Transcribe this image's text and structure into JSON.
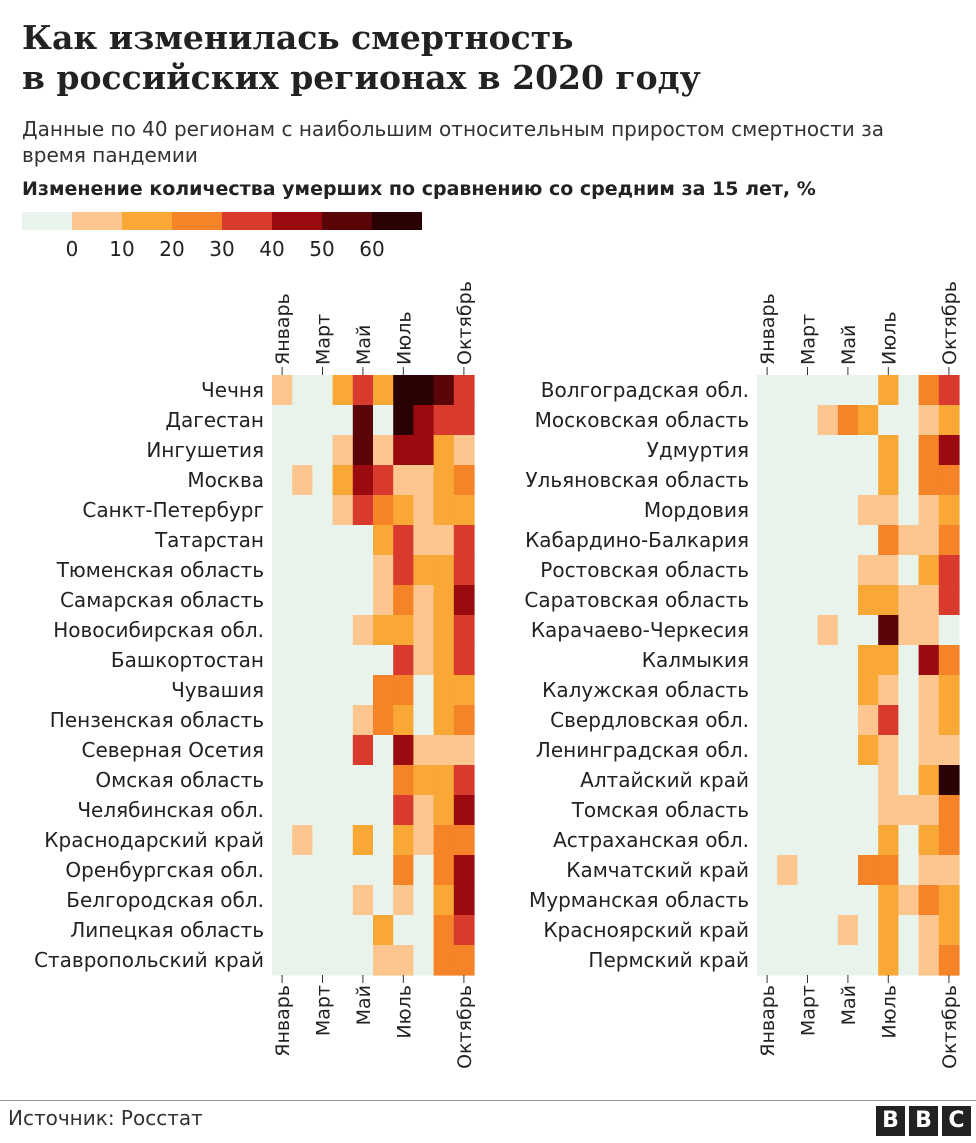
{
  "title_line1": "Как изменилась смертность",
  "title_line2": "в российских регионах в 2020 году",
  "subtitle": "Данные по 40 регионам с наибольшим относительным приростом смертности за время пандемии",
  "legend": {
    "title": "Изменение количества умерших по сравнению со средним за 15 лет, %",
    "colors": [
      "#e8f3ec",
      "#fcc68e",
      "#f9a735",
      "#f58327",
      "#d93a2e",
      "#9a0a0f",
      "#5a0508",
      "#2a0203"
    ],
    "labels": [
      "0",
      "10",
      "20",
      "30",
      "40",
      "50",
      "60"
    ]
  },
  "source": "Источник: Росстат",
  "brand": [
    "B",
    "B",
    "C"
  ],
  "chart_data": {
    "type": "heatmap",
    "title": "Изменение количества умерших по сравнению со средним за 15 лет, %",
    "x_labels": [
      "Январь",
      "Март",
      "Май",
      "Июль",
      "Октябрь"
    ],
    "x_label_month_index": [
      0,
      2,
      4,
      6,
      9
    ],
    "months_count": 10,
    "level_meaning": "0 = below 0%, 1 = 0–10%, 2 = 10–20%, 3 = 20–30%, 4 = 30–40%, 5 = 40–50%, 6 = 50–60%, 7 = above 60%",
    "panels": [
      {
        "rows": [
          {
            "region": "Чечня",
            "levels": [
              1,
              0,
              0,
              2,
              4,
              2,
              7,
              7,
              6,
              4
            ]
          },
          {
            "region": "Дагестан",
            "levels": [
              0,
              0,
              0,
              0,
              6,
              0,
              7,
              5,
              4,
              4
            ]
          },
          {
            "region": "Ингушетия",
            "levels": [
              0,
              0,
              0,
              1,
              6,
              1,
              5,
              5,
              2,
              1
            ]
          },
          {
            "region": "Москва",
            "levels": [
              0,
              1,
              0,
              2,
              5,
              4,
              1,
              1,
              2,
              3
            ]
          },
          {
            "region": "Санкт-Петербург",
            "levels": [
              0,
              0,
              0,
              1,
              4,
              3,
              2,
              1,
              2,
              2
            ]
          },
          {
            "region": "Татарстан",
            "levels": [
              0,
              0,
              0,
              0,
              0,
              2,
              4,
              1,
              1,
              4
            ]
          },
          {
            "region": "Тюменская область",
            "levels": [
              0,
              0,
              0,
              0,
              0,
              1,
              4,
              2,
              2,
              4
            ]
          },
          {
            "region": "Самарская область",
            "levels": [
              0,
              0,
              0,
              0,
              0,
              1,
              3,
              1,
              2,
              5
            ]
          },
          {
            "region": "Новосибирская обл.",
            "levels": [
              0,
              0,
              0,
              0,
              1,
              2,
              2,
              1,
              2,
              4
            ]
          },
          {
            "region": "Башкортостан",
            "levels": [
              0,
              0,
              0,
              0,
              0,
              0,
              4,
              1,
              2,
              4
            ]
          },
          {
            "region": "Чувашия",
            "levels": [
              0,
              0,
              0,
              0,
              0,
              3,
              3,
              0,
              2,
              2
            ]
          },
          {
            "region": "Пензенская область",
            "levels": [
              0,
              0,
              0,
              0,
              1,
              3,
              2,
              0,
              2,
              3
            ]
          },
          {
            "region": "Северная Осетия",
            "levels": [
              0,
              0,
              0,
              0,
              4,
              0,
              5,
              1,
              1,
              1
            ]
          },
          {
            "region": "Омская область",
            "levels": [
              0,
              0,
              0,
              0,
              0,
              0,
              3,
              2,
              2,
              4
            ]
          },
          {
            "region": "Челябинская обл.",
            "levels": [
              0,
              0,
              0,
              0,
              0,
              0,
              4,
              1,
              2,
              5
            ]
          },
          {
            "region": "Краснодарский край",
            "levels": [
              0,
              1,
              0,
              0,
              2,
              0,
              2,
              1,
              3,
              3
            ]
          },
          {
            "region": "Оренбургская обл.",
            "levels": [
              0,
              0,
              0,
              0,
              0,
              0,
              3,
              0,
              3,
              5
            ]
          },
          {
            "region": "Белгородская обл.",
            "levels": [
              0,
              0,
              0,
              0,
              1,
              0,
              1,
              0,
              2,
              5
            ]
          },
          {
            "region": "Липецкая область",
            "levels": [
              0,
              0,
              0,
              0,
              0,
              2,
              0,
              0,
              3,
              4
            ]
          },
          {
            "region": "Ставропольский край",
            "levels": [
              0,
              0,
              0,
              0,
              0,
              1,
              1,
              0,
              3,
              3
            ]
          }
        ]
      },
      {
        "rows": [
          {
            "region": "Волгоградская обл.",
            "levels": [
              0,
              0,
              0,
              0,
              0,
              0,
              2,
              0,
              3,
              4
            ]
          },
          {
            "region": "Московская область",
            "levels": [
              0,
              0,
              0,
              1,
              3,
              2,
              0,
              0,
              1,
              2
            ]
          },
          {
            "region": "Удмуртия",
            "levels": [
              0,
              0,
              0,
              0,
              0,
              0,
              2,
              0,
              3,
              5
            ]
          },
          {
            "region": "Ульяновская область",
            "levels": [
              0,
              0,
              0,
              0,
              0,
              0,
              2,
              0,
              3,
              3
            ]
          },
          {
            "region": "Мордовия",
            "levels": [
              0,
              0,
              0,
              0,
              0,
              1,
              1,
              0,
              1,
              2
            ]
          },
          {
            "region": "Кабардино-Балкария",
            "levels": [
              0,
              0,
              0,
              0,
              0,
              0,
              3,
              1,
              1,
              3
            ]
          },
          {
            "region": "Ростовская область",
            "levels": [
              0,
              0,
              0,
              0,
              0,
              1,
              1,
              0,
              2,
              4
            ]
          },
          {
            "region": "Саратовская область",
            "levels": [
              0,
              0,
              0,
              0,
              0,
              2,
              2,
              1,
              1,
              4
            ]
          },
          {
            "region": "Карачаево-Черкесия",
            "levels": [
              0,
              0,
              0,
              1,
              0,
              0,
              6,
              1,
              1,
              0
            ]
          },
          {
            "region": "Калмыкия",
            "levels": [
              0,
              0,
              0,
              0,
              0,
              2,
              2,
              0,
              5,
              3
            ]
          },
          {
            "region": "Калужская область",
            "levels": [
              0,
              0,
              0,
              0,
              0,
              2,
              1,
              0,
              1,
              2
            ]
          },
          {
            "region": "Свердловская обл.",
            "levels": [
              0,
              0,
              0,
              0,
              0,
              1,
              4,
              0,
              1,
              2
            ]
          },
          {
            "region": "Ленинградская обл.",
            "levels": [
              0,
              0,
              0,
              0,
              0,
              2,
              1,
              0,
              1,
              1
            ]
          },
          {
            "region": "Алтайский край",
            "levels": [
              0,
              0,
              0,
              0,
              0,
              0,
              1,
              0,
              2,
              7
            ]
          },
          {
            "region": "Томская область",
            "levels": [
              0,
              0,
              0,
              0,
              0,
              0,
              1,
              1,
              1,
              3
            ]
          },
          {
            "region": "Астраханская обл.",
            "levels": [
              0,
              0,
              0,
              0,
              0,
              0,
              2,
              0,
              2,
              3
            ]
          },
          {
            "region": "Камчатский край",
            "levels": [
              0,
              1,
              0,
              0,
              0,
              3,
              3,
              0,
              1,
              1
            ]
          },
          {
            "region": "Мурманская область",
            "levels": [
              0,
              0,
              0,
              0,
              0,
              0,
              2,
              1,
              3,
              2
            ]
          },
          {
            "region": "Красноярский край",
            "levels": [
              0,
              0,
              0,
              0,
              1,
              0,
              2,
              0,
              1,
              2
            ]
          },
          {
            "region": "Пермский край",
            "levels": [
              0,
              0,
              0,
              0,
              0,
              0,
              2,
              0,
              1,
              3
            ]
          }
        ]
      }
    ]
  }
}
